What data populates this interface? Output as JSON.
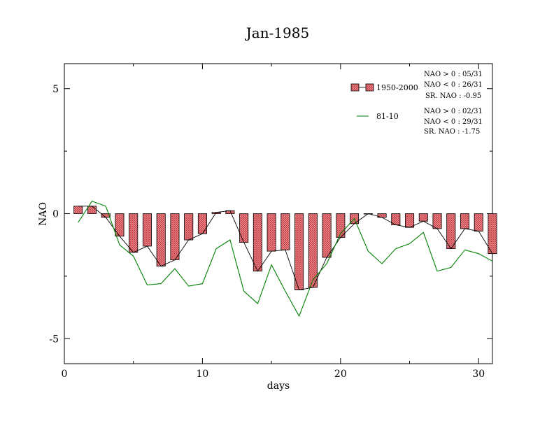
{
  "chart_data": {
    "type": "bar",
    "title": "Jan-1985",
    "xlabel": "days",
    "ylabel": "NAO",
    "xlim": [
      0,
      31
    ],
    "ylim": [
      -6,
      6
    ],
    "xticks": [
      0,
      10,
      20,
      30
    ],
    "xtick_labels": [
      "0",
      "10",
      "20",
      "30"
    ],
    "yticks": [
      -5,
      0,
      5
    ],
    "ytick_labels": [
      "-5",
      "0",
      "5"
    ],
    "grid": false,
    "legend_position": "top-right",
    "x": [
      1,
      2,
      3,
      4,
      5,
      6,
      7,
      8,
      9,
      10,
      11,
      12,
      13,
      14,
      15,
      16,
      17,
      18,
      19,
      20,
      21,
      22,
      23,
      24,
      25,
      26,
      27,
      28,
      29,
      30,
      31
    ],
    "series": [
      {
        "name": "1950-2000",
        "kind": "bar",
        "color": "#e8767a",
        "hatch": "cross",
        "values": [
          0.3,
          0.3,
          -0.15,
          -0.9,
          -1.55,
          -1.3,
          -2.1,
          -1.85,
          -1.05,
          -0.8,
          0.05,
          0.12,
          -1.15,
          -2.3,
          -1.5,
          -1.45,
          -3.05,
          -2.95,
          -1.75,
          -0.95,
          -0.4,
          0.0,
          -0.15,
          -0.45,
          -0.55,
          -0.3,
          -0.6,
          -1.4,
          -0.6,
          -0.7,
          -1.6
        ]
      },
      {
        "name": "81-10",
        "kind": "line",
        "color": "#008000",
        "values": [
          -0.35,
          0.5,
          0.3,
          -1.25,
          -1.7,
          -2.85,
          -2.8,
          -2.2,
          -2.9,
          -2.8,
          -1.4,
          -1.05,
          -3.1,
          -3.6,
          -2.05,
          -3.1,
          -4.1,
          -2.65,
          -2.0,
          -0.8,
          -0.2,
          -1.5,
          -2.0,
          -1.4,
          -1.2,
          -0.75,
          -2.3,
          -2.15,
          -1.45,
          -1.6,
          -1.9
        ]
      }
    ],
    "annotations": {
      "group1": [
        "NAO > 0 : 05/31",
        "NAO < 0 : 26/31",
        "SR. NAO : -0.95"
      ],
      "group2": [
        "NAO > 0 : 02/31",
        "NAO < 0 : 29/31",
        "SR. NAO : -1.75"
      ]
    }
  }
}
